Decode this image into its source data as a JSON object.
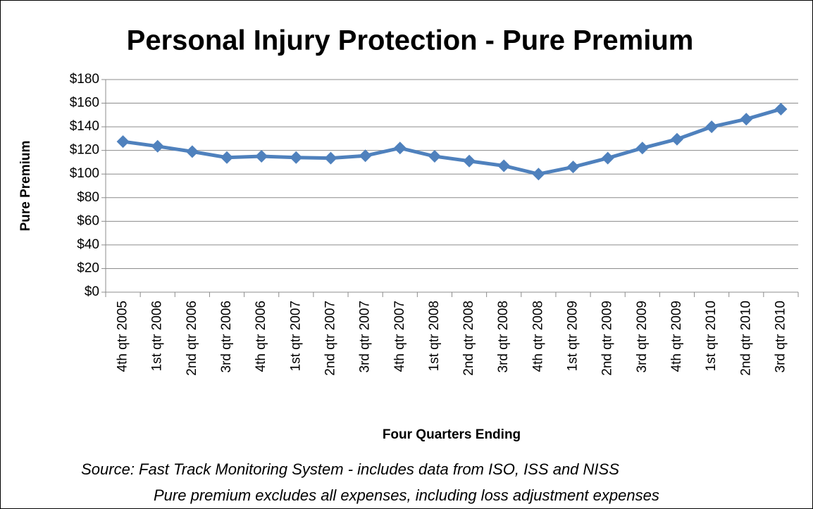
{
  "chart_data": {
    "type": "line",
    "title": "Personal Injury Protection - Pure Premium",
    "x_label": "Four Quarters Ending",
    "y_label": "Pure Premium",
    "notes": [
      "Source: Fast Track Monitoring System - includes data from ISO, ISS and NISS",
      "Pure premium excludes all expenses, including loss adjustment expenses"
    ],
    "categories": [
      "4th qtr 2005",
      "1st qtr 2006",
      "2nd qtr 2006",
      "3rd qtr 2006",
      "4th qtr 2006",
      "1st qtr 2007",
      "2nd qtr 2007",
      "3rd qtr 2007",
      "4th qtr 2007",
      "1st qtr 2008",
      "2nd qtr 2008",
      "3rd qtr 2008",
      "4th qtr 2008",
      "1st qtr 2009",
      "2nd qtr 2009",
      "3rd qtr 2009",
      "4th qtr 2009",
      "1st qtr 2010",
      "2nd qtr 2010",
      "3rd qtr 2010"
    ],
    "series": [
      {
        "name": "Pure Premium",
        "color": "#4f81bd",
        "values": [
          127.5,
          123.5,
          119,
          114,
          115,
          114,
          113.5,
          115.5,
          122,
          115,
          111,
          107,
          100,
          106,
          113.5,
          122,
          129.5,
          140,
          146.5,
          155
        ]
      }
    ],
    "ylim": [
      0,
      180
    ],
    "yticks": [
      {
        "value": 0,
        "label": "$0"
      },
      {
        "value": 20,
        "label": "$20"
      },
      {
        "value": 40,
        "label": "$40"
      },
      {
        "value": 60,
        "label": "$60"
      },
      {
        "value": 80,
        "label": "$80"
      },
      {
        "value": 100,
        "label": "$100"
      },
      {
        "value": 120,
        "label": "$120"
      },
      {
        "value": 140,
        "label": "$140"
      },
      {
        "value": 160,
        "label": "$160"
      },
      {
        "value": 180,
        "label": "$180"
      }
    ],
    "grid": true
  }
}
